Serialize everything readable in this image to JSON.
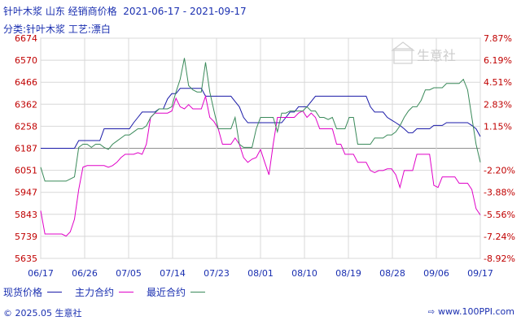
{
  "header": {
    "title": "针叶木浆 山东 经销商价格  2021-06-17 - 2021-09-17",
    "subtitle": "分类:针叶木浆 工艺:漂白"
  },
  "watermark": "生意社",
  "footer": {
    "copyright": "© 2025.05 生意社",
    "site": "www.100PPI.com"
  },
  "colors": {
    "spot": "#1a1aa8",
    "main": "#e000c8",
    "recent": "#3a8a5a",
    "text": "#1a2fb0",
    "neg": "#c00000",
    "pos": "#c00000",
    "grid": "#d8d8d8"
  },
  "chart_data": {
    "type": "line",
    "x_ticks": [
      "06/17",
      "06/26",
      "07/05",
      "07/14",
      "07/23",
      "08/01",
      "08/10",
      "08/19",
      "08/28",
      "09/06",
      "09/17"
    ],
    "y_ticks_left": [
      6674,
      6570,
      6466,
      6362,
      6258,
      6187,
      6051,
      5947,
      5843,
      5739,
      5635
    ],
    "y_ticks_right": [
      "7.87%",
      "6.19%",
      "4.51%",
      "2.83%",
      "1.15%",
      "",
      "-2.20%",
      "-3.88%",
      "-5.56%",
      "-7.24%",
      "-8.92%"
    ],
    "ylim": [
      5635,
      6674
    ],
    "baseline": 6187,
    "legend": [
      "现货价格",
      "主力合约",
      "最近合约"
    ],
    "series": [
      {
        "name": "现货价格",
        "values": [
          6187,
          6187,
          6187,
          6187,
          6187,
          6187,
          6187,
          6187,
          6187,
          6212,
          6212,
          6212,
          6212,
          6212,
          6212,
          6250,
          6250,
          6250,
          6250,
          6250,
          6250,
          6250,
          6275,
          6300,
          6325,
          6325,
          6325,
          6325,
          6340,
          6340,
          6387,
          6412,
          6412,
          6437,
          6437,
          6437,
          6437,
          6437,
          6437,
          6400,
          6400,
          6400,
          6400,
          6400,
          6400,
          6400,
          6375,
          6350,
          6300,
          6275,
          6275,
          6275,
          6275,
          6275,
          6275,
          6275,
          6275,
          6275,
          6300,
          6325,
          6325,
          6350,
          6350,
          6350,
          6375,
          6400,
          6400,
          6400,
          6400,
          6400,
          6400,
          6400,
          6400,
          6400,
          6400,
          6400,
          6400,
          6400,
          6350,
          6325,
          6325,
          6325,
          6300,
          6287,
          6275,
          6262,
          6250,
          6237,
          6237,
          6250,
          6250,
          6250,
          6250,
          6262,
          6262,
          6262,
          6275,
          6275,
          6275,
          6275,
          6275,
          6275,
          6262,
          6250,
          6225
        ]
      },
      {
        "name": "主力合约",
        "values": [
          5860,
          5750,
          5750,
          5750,
          5750,
          5750,
          5740,
          5760,
          5820,
          5960,
          6070,
          6080,
          6080,
          6080,
          6080,
          6080,
          6070,
          6080,
          6100,
          6130,
          6150,
          6150,
          6150,
          6160,
          6150,
          6200,
          6300,
          6320,
          6320,
          6320,
          6320,
          6330,
          6390,
          6350,
          6340,
          6360,
          6340,
          6340,
          6340,
          6400,
          6300,
          6280,
          6250,
          6200,
          6200,
          6200,
          6220,
          6200,
          6130,
          6100,
          6120,
          6130,
          6180,
          6100,
          6030,
          6200,
          6300,
          6300,
          6300,
          6300,
          6300,
          6320,
          6330,
          6300,
          6320,
          6300,
          6250,
          6250,
          6250,
          6250,
          6200,
          6200,
          6150,
          6150,
          6150,
          6100,
          6100,
          6100,
          6050,
          6040,
          6050,
          6050,
          6060,
          6060,
          6030,
          5970,
          6050,
          6050,
          6050,
          6150,
          6150,
          6150,
          6150,
          5980,
          5970,
          6020,
          6020,
          6020,
          6020,
          5990,
          5990,
          5990,
          5960,
          5870,
          5840
        ]
      },
      {
        "name": "最近合约",
        "values": [
          6070,
          6000,
          6000,
          6000,
          6000,
          6000,
          6000,
          6010,
          6020,
          6190,
          6200,
          6200,
          6190,
          6200,
          6200,
          6190,
          6180,
          6200,
          6210,
          6220,
          6230,
          6230,
          6240,
          6250,
          6250,
          6260,
          6300,
          6320,
          6340,
          6340,
          6340,
          6350,
          6420,
          6480,
          6580,
          6450,
          6430,
          6420,
          6420,
          6560,
          6420,
          6330,
          6250,
          6250,
          6250,
          6250,
          6300,
          6200,
          6190,
          6190,
          6190,
          6250,
          6300,
          6300,
          6300,
          6300,
          6240,
          6320,
          6320,
          6330,
          6330,
          6330,
          6330,
          6350,
          6330,
          6330,
          6300,
          6300,
          6290,
          6300,
          6250,
          6250,
          6250,
          6300,
          6300,
          6200,
          6200,
          6200,
          6200,
          6220,
          6220,
          6220,
          6230,
          6230,
          6240,
          6260,
          6300,
          6330,
          6350,
          6350,
          6380,
          6430,
          6430,
          6440,
          6440,
          6440,
          6460,
          6460,
          6460,
          6460,
          6480,
          6430,
          6300,
          6200,
          6100
        ]
      }
    ]
  }
}
